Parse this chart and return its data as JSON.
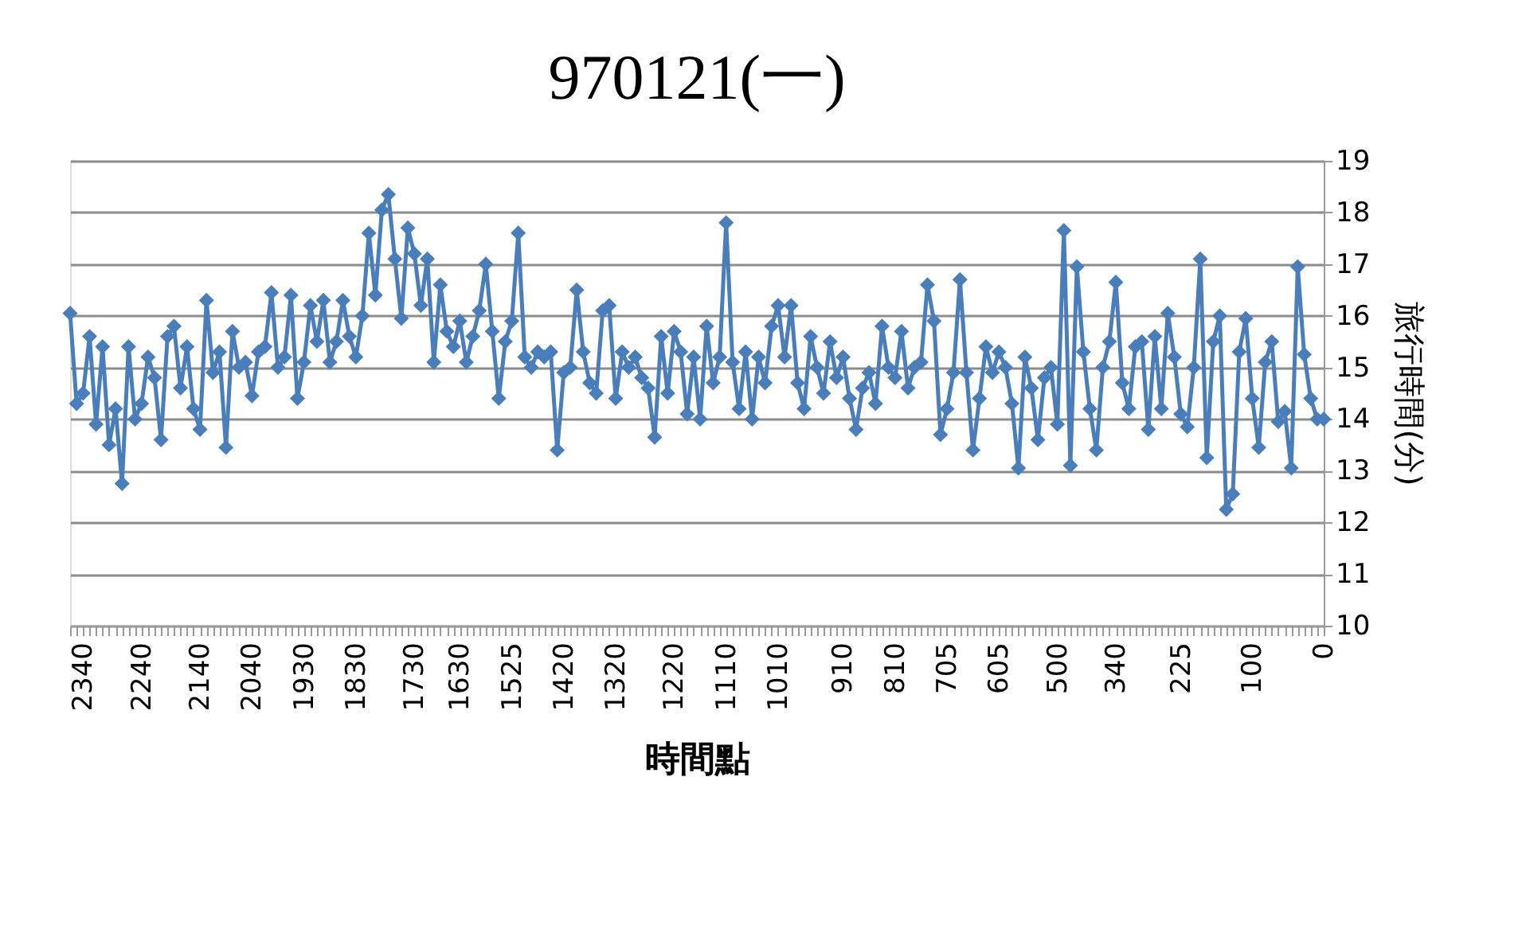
{
  "chart_data": {
    "type": "line",
    "title": "970121(一)",
    "xlabel": "時間點",
    "ylabel": "旅行時間(分)",
    "categories": [
      null,
      null,
      "2340",
      null,
      null,
      null,
      null,
      null,
      null,
      null,
      null,
      "2240",
      null,
      null,
      null,
      null,
      null,
      null,
      null,
      null,
      "2140",
      null,
      null,
      null,
      null,
      null,
      null,
      null,
      "2040",
      null,
      null,
      null,
      null,
      null,
      null,
      null,
      "1930",
      null,
      null,
      null,
      null,
      null,
      null,
      null,
      "1830",
      null,
      null,
      null,
      null,
      null,
      null,
      null,
      null,
      "1730",
      null,
      null,
      null,
      null,
      null,
      null,
      "1630",
      null,
      null,
      null,
      null,
      null,
      null,
      null,
      "1525",
      null,
      null,
      null,
      null,
      null,
      null,
      null,
      "1420",
      null,
      null,
      null,
      null,
      null,
      null,
      null,
      "1320",
      null,
      null,
      null,
      null,
      null,
      null,
      null,
      null,
      "1220",
      null,
      null,
      null,
      null,
      null,
      null,
      null,
      "1110",
      null,
      null,
      null,
      null,
      null,
      null,
      null,
      "1010",
      null,
      null,
      null,
      null,
      null,
      null,
      null,
      null,
      null,
      "910",
      null,
      null,
      null,
      null,
      null,
      null,
      null,
      "810",
      null,
      null,
      null,
      null,
      null,
      null,
      null,
      "705",
      null,
      null,
      null,
      null,
      null,
      null,
      null,
      "605",
      null,
      null,
      null,
      null,
      null,
      null,
      null,
      null,
      "500",
      null,
      null,
      null,
      null,
      null,
      null,
      null,
      null,
      "340",
      null,
      null,
      null,
      null,
      null,
      null,
      null,
      null,
      null,
      "225",
      null,
      null,
      null,
      null,
      null,
      null,
      null,
      null,
      null,
      null,
      "100",
      null,
      null,
      null,
      null,
      null,
      null,
      null,
      null,
      null,
      null,
      "0"
    ],
    "series": [
      {
        "color": "#4a7ebb",
        "values": [
          16.05,
          14.3,
          14.5,
          15.6,
          13.9,
          15.4,
          13.5,
          14.2,
          12.75,
          15.4,
          14.0,
          14.3,
          15.2,
          14.8,
          13.6,
          15.6,
          15.8,
          14.6,
          15.4,
          14.2,
          13.8,
          16.3,
          14.9,
          15.3,
          13.45,
          15.7,
          15.0,
          15.1,
          14.45,
          15.3,
          15.4,
          16.45,
          15.0,
          15.2,
          16.4,
          14.4,
          15.1,
          16.2,
          15.5,
          16.3,
          15.1,
          15.5,
          16.3,
          15.6,
          15.2,
          16.0,
          17.6,
          16.4,
          18.05,
          18.35,
          17.1,
          15.95,
          17.7,
          17.2,
          16.2,
          17.1,
          15.1,
          16.6,
          15.7,
          15.4,
          15.9,
          15.1,
          15.6,
          16.1,
          17.0,
          15.7,
          14.4,
          15.5,
          15.9,
          17.6,
          15.2,
          15.0,
          15.3,
          15.2,
          15.3,
          13.4,
          14.9,
          15.0,
          16.5,
          15.3,
          14.7,
          14.5,
          16.1,
          16.2,
          14.4,
          15.3,
          15.0,
          15.2,
          14.8,
          14.6,
          13.65,
          15.6,
          14.5,
          15.7,
          15.3,
          14.1,
          15.2,
          14.0,
          15.8,
          14.7,
          15.2,
          17.8,
          15.1,
          14.2,
          15.3,
          14.0,
          15.2,
          14.7,
          15.8,
          16.2,
          15.2,
          16.2,
          14.7,
          14.2,
          15.6,
          15.0,
          14.5,
          15.5,
          14.8,
          15.2,
          14.4,
          13.8,
          14.6,
          14.9,
          14.3,
          15.8,
          15.0,
          14.8,
          15.7,
          14.6,
          15.0,
          15.1,
          16.6,
          15.9,
          13.7,
          14.2,
          14.9,
          16.7,
          14.9,
          13.4,
          14.4,
          15.4,
          14.9,
          15.3,
          15.0,
          14.3,
          13.05,
          15.2,
          14.6,
          13.6,
          14.8,
          15.0,
          13.9,
          17.65,
          13.1,
          16.95,
          15.3,
          14.2,
          13.4,
          15.0,
          15.5,
          16.65,
          14.7,
          14.2,
          15.4,
          15.5,
          13.8,
          15.6,
          14.2,
          16.05,
          15.2,
          14.1,
          13.85,
          15.0,
          17.1,
          13.25,
          15.5,
          16.0,
          12.25,
          12.55,
          15.3,
          15.95,
          14.4,
          13.45,
          15.1,
          15.5,
          13.95,
          14.15,
          13.05,
          16.95,
          15.25,
          14.4,
          14.0,
          14.0
        ]
      }
    ],
    "ylim": [
      10,
      19
    ],
    "yticks": [
      10,
      11,
      12,
      13,
      14,
      15,
      16,
      17,
      18,
      19
    ],
    "grid": "y",
    "marker": "diamond",
    "line_style": "solid"
  }
}
